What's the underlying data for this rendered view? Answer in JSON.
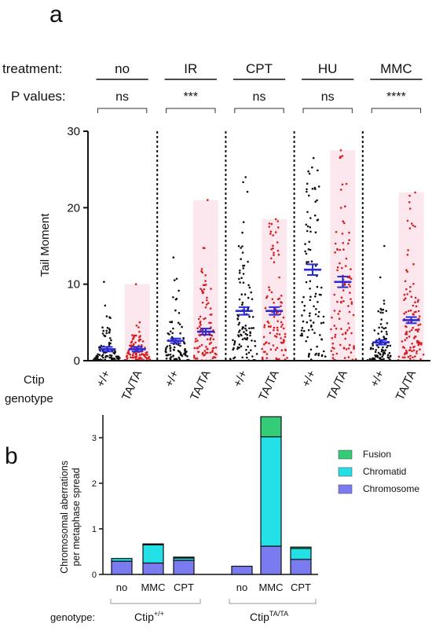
{
  "panel_a": {
    "label": "a",
    "treatment_label": "treatment:",
    "pvalue_label": "P values:",
    "row_label_line1": "Ctip",
    "row_label_line2": "genotype",
    "ylabel": "Tail Moment",
    "y_ticks": [
      "0",
      "10",
      "20",
      "30"
    ],
    "groups": [
      {
        "treatment": "no",
        "pvalue": "ns"
      },
      {
        "treatment": "IR",
        "pvalue": "***"
      },
      {
        "treatment": "CPT",
        "pvalue": "ns"
      },
      {
        "treatment": "HU",
        "pvalue": "ns"
      },
      {
        "treatment": "MMC",
        "pvalue": "****"
      }
    ]
  },
  "panel_b": {
    "label": "b",
    "ylabel_line1": "Chromosomal aberrations",
    "ylabel_line2": "per metaphase spread",
    "y_ticks": [
      "0",
      "1",
      "2",
      "3"
    ],
    "genotype_label": "genotype:",
    "genotype1_base": "Ctip",
    "genotype1_sup": "+/+",
    "genotype2_base": "Ctip",
    "genotype2_sup": "TA/TA",
    "legend": [
      "Fusion",
      "Chromatid",
      "Chromosome"
    ]
  },
  "colors": {
    "wt_dots": "#111111",
    "mut_dots": "#d42020",
    "mean_sem": "#2a2ad8",
    "mut_shade": "#f7d3df",
    "fusion": "#33cc77",
    "chromatid": "#22e0e6",
    "chromosome": "#7b7bf0"
  },
  "chart_data": [
    {
      "type": "scatter",
      "title": "",
      "ylabel": "Tail Moment",
      "ylim": [
        0,
        30
      ],
      "treatments": [
        "no",
        "IR",
        "CPT",
        "HU",
        "MMC"
      ],
      "genotypes": [
        "+/+",
        "TA/TA"
      ],
      "pvalues": [
        "ns",
        "***",
        "ns",
        "ns",
        "****"
      ],
      "series": [
        {
          "treatment": "no",
          "genotype": "+/+",
          "mean": 1.5,
          "sem": 0.3,
          "max": 10.3,
          "n": 90
        },
        {
          "treatment": "no",
          "genotype": "TA/TA",
          "mean": 1.5,
          "sem": 0.3,
          "max": 10.0,
          "n": 100
        },
        {
          "treatment": "IR",
          "genotype": "+/+",
          "mean": 2.6,
          "sem": 0.3,
          "max": 13.5,
          "n": 90
        },
        {
          "treatment": "IR",
          "genotype": "TA/TA",
          "mean": 3.8,
          "sem": 0.4,
          "max": 21.0,
          "n": 100
        },
        {
          "treatment": "CPT",
          "genotype": "+/+",
          "mean": 6.5,
          "sem": 0.5,
          "max": 24.0,
          "n": 100
        },
        {
          "treatment": "CPT",
          "genotype": "TA/TA",
          "mean": 6.5,
          "sem": 0.5,
          "max": 18.5,
          "n": 100
        },
        {
          "treatment": "HU",
          "genotype": "+/+",
          "mean": 11.9,
          "sem": 0.7,
          "max": 26.5,
          "n": 100
        },
        {
          "treatment": "HU",
          "genotype": "TA/TA",
          "mean": 10.3,
          "sem": 0.7,
          "max": 27.5,
          "n": 100
        },
        {
          "treatment": "MMC",
          "genotype": "+/+",
          "mean": 2.4,
          "sem": 0.3,
          "max": 15.0,
          "n": 90
        },
        {
          "treatment": "MMC",
          "genotype": "TA/TA",
          "mean": 5.3,
          "sem": 0.4,
          "max": 22.0,
          "n": 110
        }
      ]
    },
    {
      "type": "bar",
      "stacked": true,
      "title": "",
      "ylabel": "Chromosomal aberrations per metaphase spread",
      "ylim": [
        0,
        3.5
      ],
      "groups": [
        {
          "genotype": "Ctip+/+",
          "categories": [
            "no",
            "MMC",
            "CPT"
          ]
        },
        {
          "genotype": "CtipTA/TA",
          "categories": [
            "no",
            "MMC",
            "CPT"
          ]
        }
      ],
      "series": [
        {
          "name": "Chromosome",
          "values": [
            0.29,
            0.25,
            0.31,
            0.18,
            0.62,
            0.33
          ]
        },
        {
          "name": "Chromatid",
          "values": [
            0.06,
            0.4,
            0.05,
            0.0,
            2.4,
            0.24
          ]
        },
        {
          "name": "Fusion",
          "values": [
            0.0,
            0.02,
            0.02,
            0.0,
            0.44,
            0.03
          ]
        }
      ],
      "legend_position": "right"
    }
  ]
}
